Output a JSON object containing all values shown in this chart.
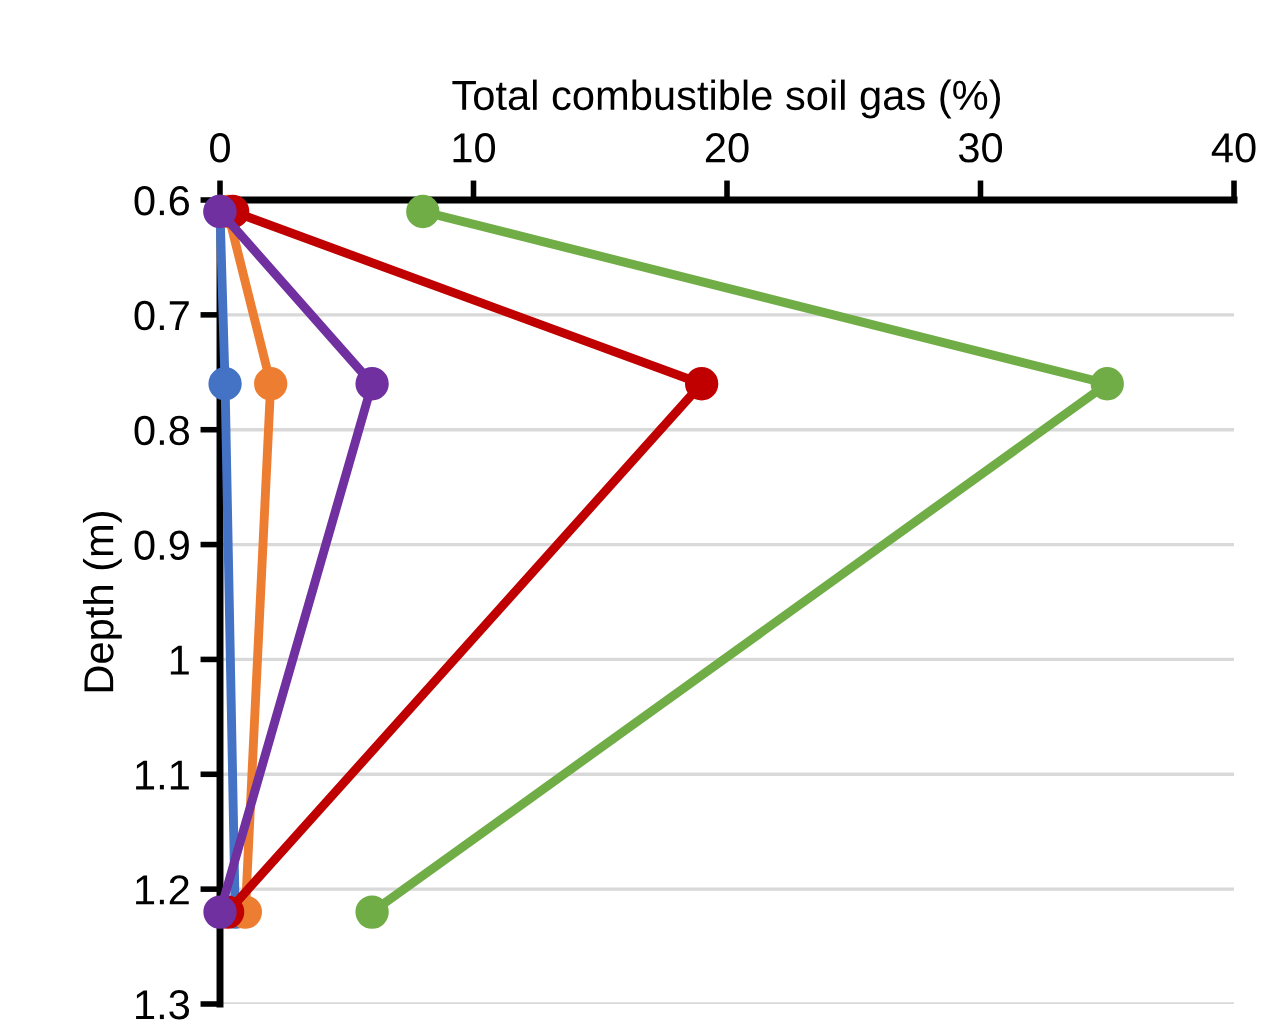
{
  "chart_data": {
    "type": "line",
    "xlabel": "Total combustible soil gas (%)",
    "ylabel": "Depth (m)",
    "xlim": [
      0,
      40
    ],
    "xticks": [
      0,
      10,
      20,
      30,
      40
    ],
    "ylim": [
      1.3,
      0.6
    ],
    "yticks": [
      0.6,
      0.7,
      0.8,
      0.9,
      1,
      1.1,
      1.2,
      1.3
    ],
    "grid": "y",
    "marker": "circle",
    "line_style": "solid",
    "series": [
      {
        "color": "#4472c4",
        "x": [
          0,
          0.2,
          0.6
        ],
        "values": [
          0.61,
          0.76,
          1.22
        ]
      },
      {
        "color": "#ed7d31",
        "x": [
          0.3,
          2,
          1
        ],
        "values": [
          0.61,
          0.76,
          1.22
        ]
      },
      {
        "color": "#70ad47",
        "x": [
          8,
          35,
          6
        ],
        "values": [
          0.61,
          0.76,
          1.22
        ]
      },
      {
        "color": "#c00000",
        "x": [
          0.5,
          19,
          0.3
        ],
        "values": [
          0.61,
          0.76,
          1.22
        ]
      },
      {
        "color": "#7030a0",
        "x": [
          0,
          6,
          0
        ],
        "values": [
          0.61,
          0.76,
          1.22
        ]
      }
    ]
  }
}
